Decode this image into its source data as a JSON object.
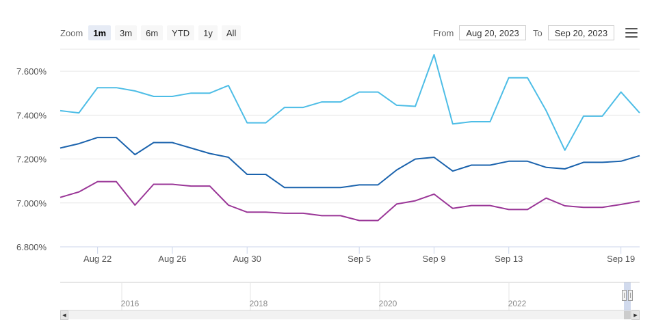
{
  "toolbar": {
    "zoom_label": "Zoom",
    "buttons": [
      "1m",
      "3m",
      "6m",
      "YTD",
      "1y",
      "All"
    ],
    "active_index": 0,
    "from_label": "From",
    "from_value": "Aug 20, 2023",
    "to_label": "To",
    "to_value": "Sep 20, 2023",
    "menu_icon": "hamburger-menu-icon"
  },
  "chart_data": {
    "type": "line",
    "x": [
      "Aug 20",
      "Aug 21",
      "Aug 22",
      "Aug 23",
      "Aug 24",
      "Aug 25",
      "Aug 26",
      "Aug 27",
      "Aug 28",
      "Aug 29",
      "Aug 30",
      "Aug 31",
      "Sep 1",
      "Sep 2",
      "Sep 3",
      "Sep 4",
      "Sep 5",
      "Sep 6",
      "Sep 7",
      "Sep 8",
      "Sep 9",
      "Sep 10",
      "Sep 11",
      "Sep 12",
      "Sep 13",
      "Sep 14",
      "Sep 15",
      "Sep 16",
      "Sep 17",
      "Sep 18",
      "Sep 19",
      "Sep 20"
    ],
    "series": [
      {
        "color": "#4dbde6",
        "values": [
          7.42,
          7.41,
          7.525,
          7.525,
          7.51,
          7.485,
          7.485,
          7.5,
          7.5,
          7.535,
          7.365,
          7.365,
          7.435,
          7.435,
          7.46,
          7.46,
          7.505,
          7.505,
          7.445,
          7.44,
          7.675,
          7.36,
          7.37,
          7.37,
          7.57,
          7.57,
          7.42,
          7.24,
          7.395,
          7.395,
          7.505,
          7.41
        ]
      },
      {
        "color": "#1b63ad",
        "values": [
          7.25,
          7.27,
          7.298,
          7.298,
          7.22,
          7.275,
          7.275,
          7.25,
          7.225,
          7.208,
          7.13,
          7.13,
          7.07,
          7.07,
          7.07,
          7.07,
          7.082,
          7.082,
          7.15,
          7.2,
          7.208,
          7.145,
          7.172,
          7.172,
          7.19,
          7.19,
          7.162,
          7.155,
          7.185,
          7.185,
          7.19,
          7.215
        ]
      },
      {
        "color": "#9a3697",
        "values": [
          7.025,
          7.05,
          7.097,
          7.097,
          6.99,
          7.085,
          7.085,
          7.077,
          7.077,
          6.99,
          6.958,
          6.958,
          6.953,
          6.953,
          6.942,
          6.942,
          6.92,
          6.92,
          6.995,
          7.01,
          7.04,
          6.975,
          6.988,
          6.988,
          6.97,
          6.97,
          7.022,
          6.987,
          6.98,
          6.98,
          6.993,
          7.008
        ]
      }
    ],
    "ylim": [
      6.8,
      7.7
    ],
    "y_ticks": [
      "6.800%",
      "7.000%",
      "7.200%",
      "7.400%",
      "7.600%"
    ],
    "x_ticks": [
      "Aug 22",
      "Aug 26",
      "Aug 30",
      "Sep 5",
      "Sep 9",
      "Sep 13",
      "Sep 19"
    ],
    "grid": true,
    "navigator_ticks": [
      "2016",
      "2018",
      "2020",
      "2022"
    ]
  }
}
